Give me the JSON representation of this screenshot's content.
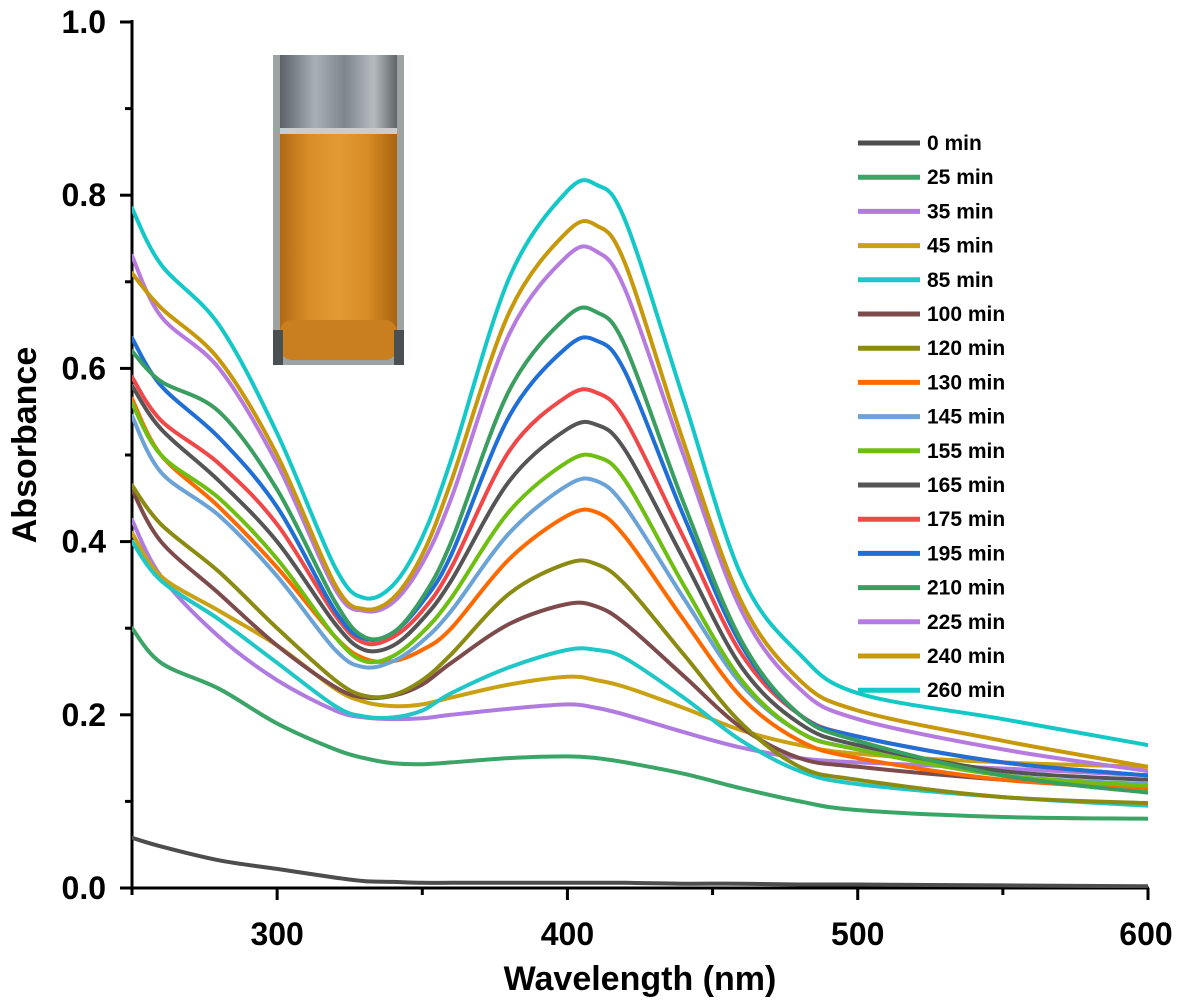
{
  "chart_data": {
    "type": "line",
    "title": "",
    "xlabel": "Wavelength (nm)",
    "ylabel": "Absorbance",
    "xlim": [
      250,
      600
    ],
    "ylim": [
      0.0,
      1.0
    ],
    "xticks": [
      300,
      400,
      500,
      600
    ],
    "xtick_labels": [
      "300",
      "400",
      "500",
      "600"
    ],
    "yticks": [
      0.0,
      0.2,
      0.4,
      0.6,
      0.8,
      1.0
    ],
    "ytick_labels": [
      "0.0",
      "0.2",
      "0.4",
      "0.6",
      "0.8",
      "1.0"
    ],
    "grid": false,
    "legend_position": "right",
    "inset": "photo of vial with orange-brown colloid",
    "x": [
      250,
      260,
      280,
      300,
      320,
      330,
      340,
      350,
      360,
      380,
      400,
      410,
      420,
      440,
      460,
      480,
      500,
      550,
      600
    ],
    "series": [
      {
        "name": "0 min",
        "color": "#4d4d4d",
        "values": [
          0.058,
          0.048,
          0.032,
          0.022,
          0.012,
          0.008,
          0.007,
          0.006,
          0.006,
          0.006,
          0.006,
          0.006,
          0.006,
          0.005,
          0.005,
          0.004,
          0.004,
          0.003,
          0.002
        ]
      },
      {
        "name": "25 min",
        "color": "#3aa566",
        "values": [
          0.3,
          0.26,
          0.23,
          0.19,
          0.16,
          0.15,
          0.144,
          0.143,
          0.145,
          0.15,
          0.152,
          0.15,
          0.145,
          0.132,
          0.115,
          0.1,
          0.09,
          0.082,
          0.08
        ]
      },
      {
        "name": "35 min",
        "color": "#b07be0",
        "values": [
          0.425,
          0.36,
          0.29,
          0.24,
          0.205,
          0.197,
          0.195,
          0.196,
          0.2,
          0.207,
          0.212,
          0.208,
          0.2,
          0.18,
          0.162,
          0.15,
          0.145,
          0.138,
          0.13
        ]
      },
      {
        "name": "45 min",
        "color": "#c9a112",
        "values": [
          0.41,
          0.36,
          0.32,
          0.28,
          0.23,
          0.215,
          0.21,
          0.212,
          0.22,
          0.235,
          0.244,
          0.24,
          0.232,
          0.208,
          0.182,
          0.165,
          0.155,
          0.145,
          0.14
        ]
      },
      {
        "name": "85 min",
        "color": "#1fc7c7",
        "values": [
          0.4,
          0.355,
          0.31,
          0.26,
          0.21,
          0.198,
          0.197,
          0.205,
          0.225,
          0.255,
          0.275,
          0.275,
          0.265,
          0.22,
          0.17,
          0.135,
          0.12,
          0.105,
          0.095
        ]
      },
      {
        "name": "100 min",
        "color": "#7d4b4b",
        "values": [
          0.46,
          0.4,
          0.34,
          0.28,
          0.232,
          0.22,
          0.222,
          0.235,
          0.26,
          0.305,
          0.328,
          0.325,
          0.305,
          0.245,
          0.185,
          0.15,
          0.14,
          0.125,
          0.115
        ]
      },
      {
        "name": "120 min",
        "color": "#8b8b12",
        "values": [
          0.465,
          0.42,
          0.365,
          0.3,
          0.24,
          0.222,
          0.223,
          0.24,
          0.27,
          0.34,
          0.375,
          0.374,
          0.35,
          0.27,
          0.19,
          0.14,
          0.125,
          0.105,
          0.098
        ]
      },
      {
        "name": "130 min",
        "color": "#ff6a00",
        "values": [
          0.565,
          0.5,
          0.44,
          0.37,
          0.29,
          0.265,
          0.262,
          0.275,
          0.3,
          0.38,
          0.43,
          0.434,
          0.405,
          0.31,
          0.22,
          0.17,
          0.15,
          0.125,
          0.115
        ]
      },
      {
        "name": "145 min",
        "color": "#6ba3d6",
        "values": [
          0.545,
          0.48,
          0.43,
          0.36,
          0.275,
          0.255,
          0.262,
          0.285,
          0.32,
          0.41,
          0.465,
          0.47,
          0.44,
          0.335,
          0.235,
          0.18,
          0.16,
          0.13,
          0.12
        ]
      },
      {
        "name": "155 min",
        "color": "#6fbf12",
        "values": [
          0.56,
          0.5,
          0.45,
          0.38,
          0.29,
          0.262,
          0.268,
          0.295,
          0.335,
          0.435,
          0.492,
          0.498,
          0.47,
          0.35,
          0.24,
          0.18,
          0.16,
          0.13,
          0.118
        ]
      },
      {
        "name": "165 min",
        "color": "#555555",
        "values": [
          0.58,
          0.53,
          0.47,
          0.4,
          0.305,
          0.275,
          0.28,
          0.31,
          0.355,
          0.47,
          0.53,
          0.535,
          0.505,
          0.38,
          0.255,
          0.19,
          0.165,
          0.135,
          0.125
        ]
      },
      {
        "name": "175 min",
        "color": "#f04848",
        "values": [
          0.59,
          0.54,
          0.49,
          0.42,
          0.315,
          0.283,
          0.29,
          0.32,
          0.37,
          0.505,
          0.568,
          0.572,
          0.54,
          0.405,
          0.27,
          0.2,
          0.175,
          0.145,
          0.13
        ]
      },
      {
        "name": "195 min",
        "color": "#1f6fd6",
        "values": [
          0.635,
          0.58,
          0.52,
          0.44,
          0.32,
          0.288,
          0.295,
          0.33,
          0.385,
          0.545,
          0.625,
          0.632,
          0.595,
          0.43,
          0.28,
          0.2,
          0.175,
          0.145,
          0.13
        ]
      },
      {
        "name": "210 min",
        "color": "#3a9e60",
        "values": [
          0.62,
          0.585,
          0.55,
          0.46,
          0.33,
          0.29,
          0.295,
          0.335,
          0.4,
          0.575,
          0.66,
          0.665,
          0.625,
          0.445,
          0.285,
          0.2,
          0.17,
          0.13,
          0.11
        ]
      },
      {
        "name": "225 min",
        "color": "#b77be0",
        "values": [
          0.73,
          0.66,
          0.6,
          0.49,
          0.345,
          0.32,
          0.33,
          0.375,
          0.45,
          0.64,
          0.73,
          0.735,
          0.69,
          0.5,
          0.32,
          0.23,
          0.195,
          0.16,
          0.135
        ]
      },
      {
        "name": "240 min",
        "color": "#c7980a",
        "values": [
          0.71,
          0.67,
          0.61,
          0.5,
          0.35,
          0.322,
          0.335,
          0.385,
          0.47,
          0.665,
          0.758,
          0.765,
          0.72,
          0.515,
          0.33,
          0.24,
          0.205,
          0.17,
          0.14
        ]
      },
      {
        "name": "260 min",
        "color": "#14c8c8",
        "values": [
          0.785,
          0.72,
          0.65,
          0.525,
          0.37,
          0.335,
          0.35,
          0.405,
          0.495,
          0.705,
          0.805,
          0.812,
          0.77,
          0.565,
          0.36,
          0.27,
          0.225,
          0.195,
          0.165
        ]
      }
    ]
  }
}
